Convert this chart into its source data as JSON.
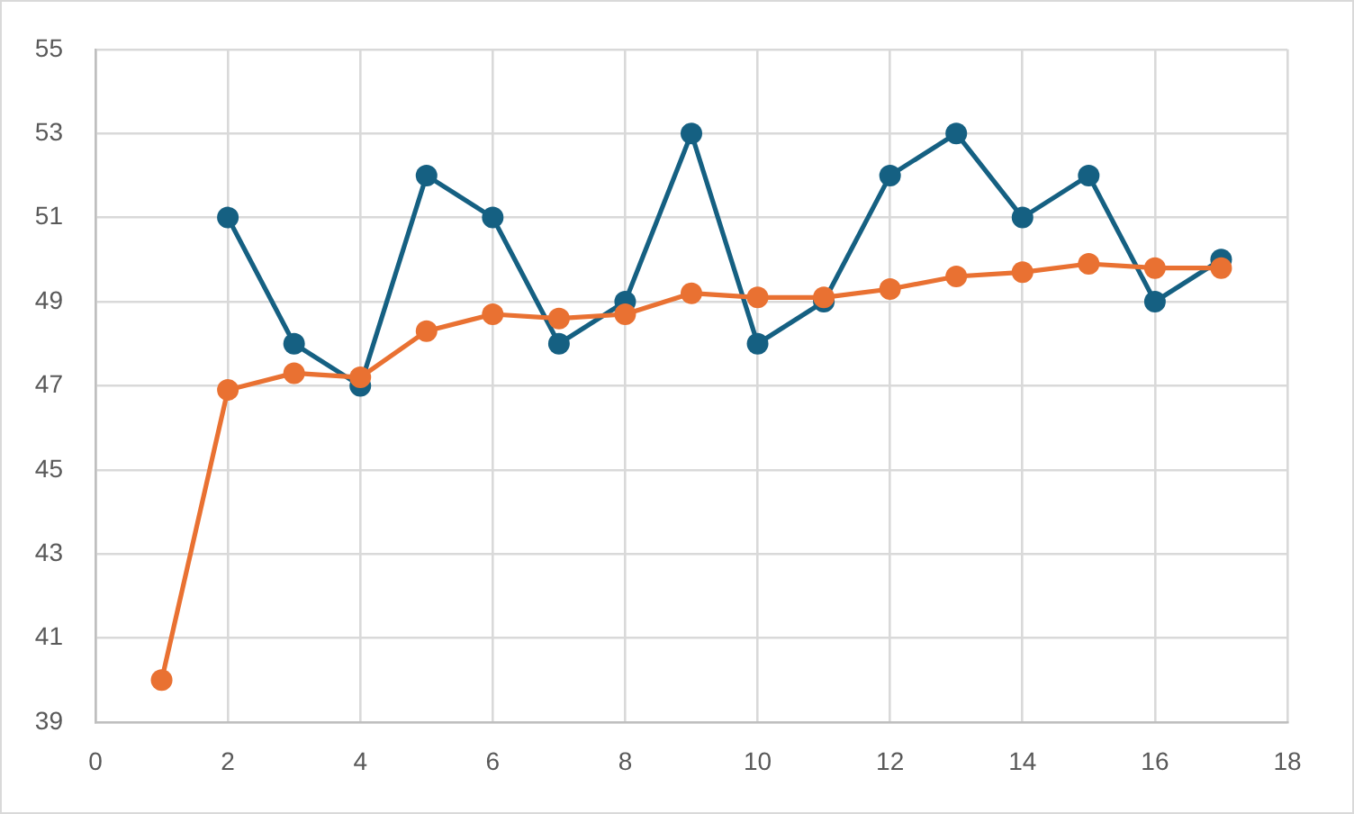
{
  "chart_data": {
    "type": "line",
    "x": [
      1,
      2,
      3,
      4,
      5,
      6,
      7,
      8,
      9,
      10,
      11,
      12,
      13,
      14,
      15,
      16,
      17
    ],
    "series": [
      {
        "color": "#156082",
        "values": [
          null,
          51,
          48,
          47,
          52,
          51,
          48,
          49,
          53,
          48,
          49,
          52,
          53,
          51,
          52,
          49,
          50
        ]
      },
      {
        "color": "#e97132",
        "values": [
          40,
          46.9,
          47.3,
          47.2,
          48.3,
          48.7,
          48.6,
          48.7,
          49.2,
          49.1,
          49.1,
          49.3,
          49.6,
          49.7,
          49.9,
          49.8,
          49.8
        ]
      }
    ],
    "xlim": [
      0,
      18
    ],
    "xticks": [
      0,
      2,
      4,
      6,
      8,
      10,
      12,
      14,
      16,
      18
    ],
    "ylim": [
      39,
      55
    ],
    "yticks": [
      39,
      41,
      43,
      45,
      47,
      49,
      51,
      53,
      55
    ],
    "grid": true,
    "legend": false,
    "marker": "circle",
    "line_style": "solid"
  }
}
